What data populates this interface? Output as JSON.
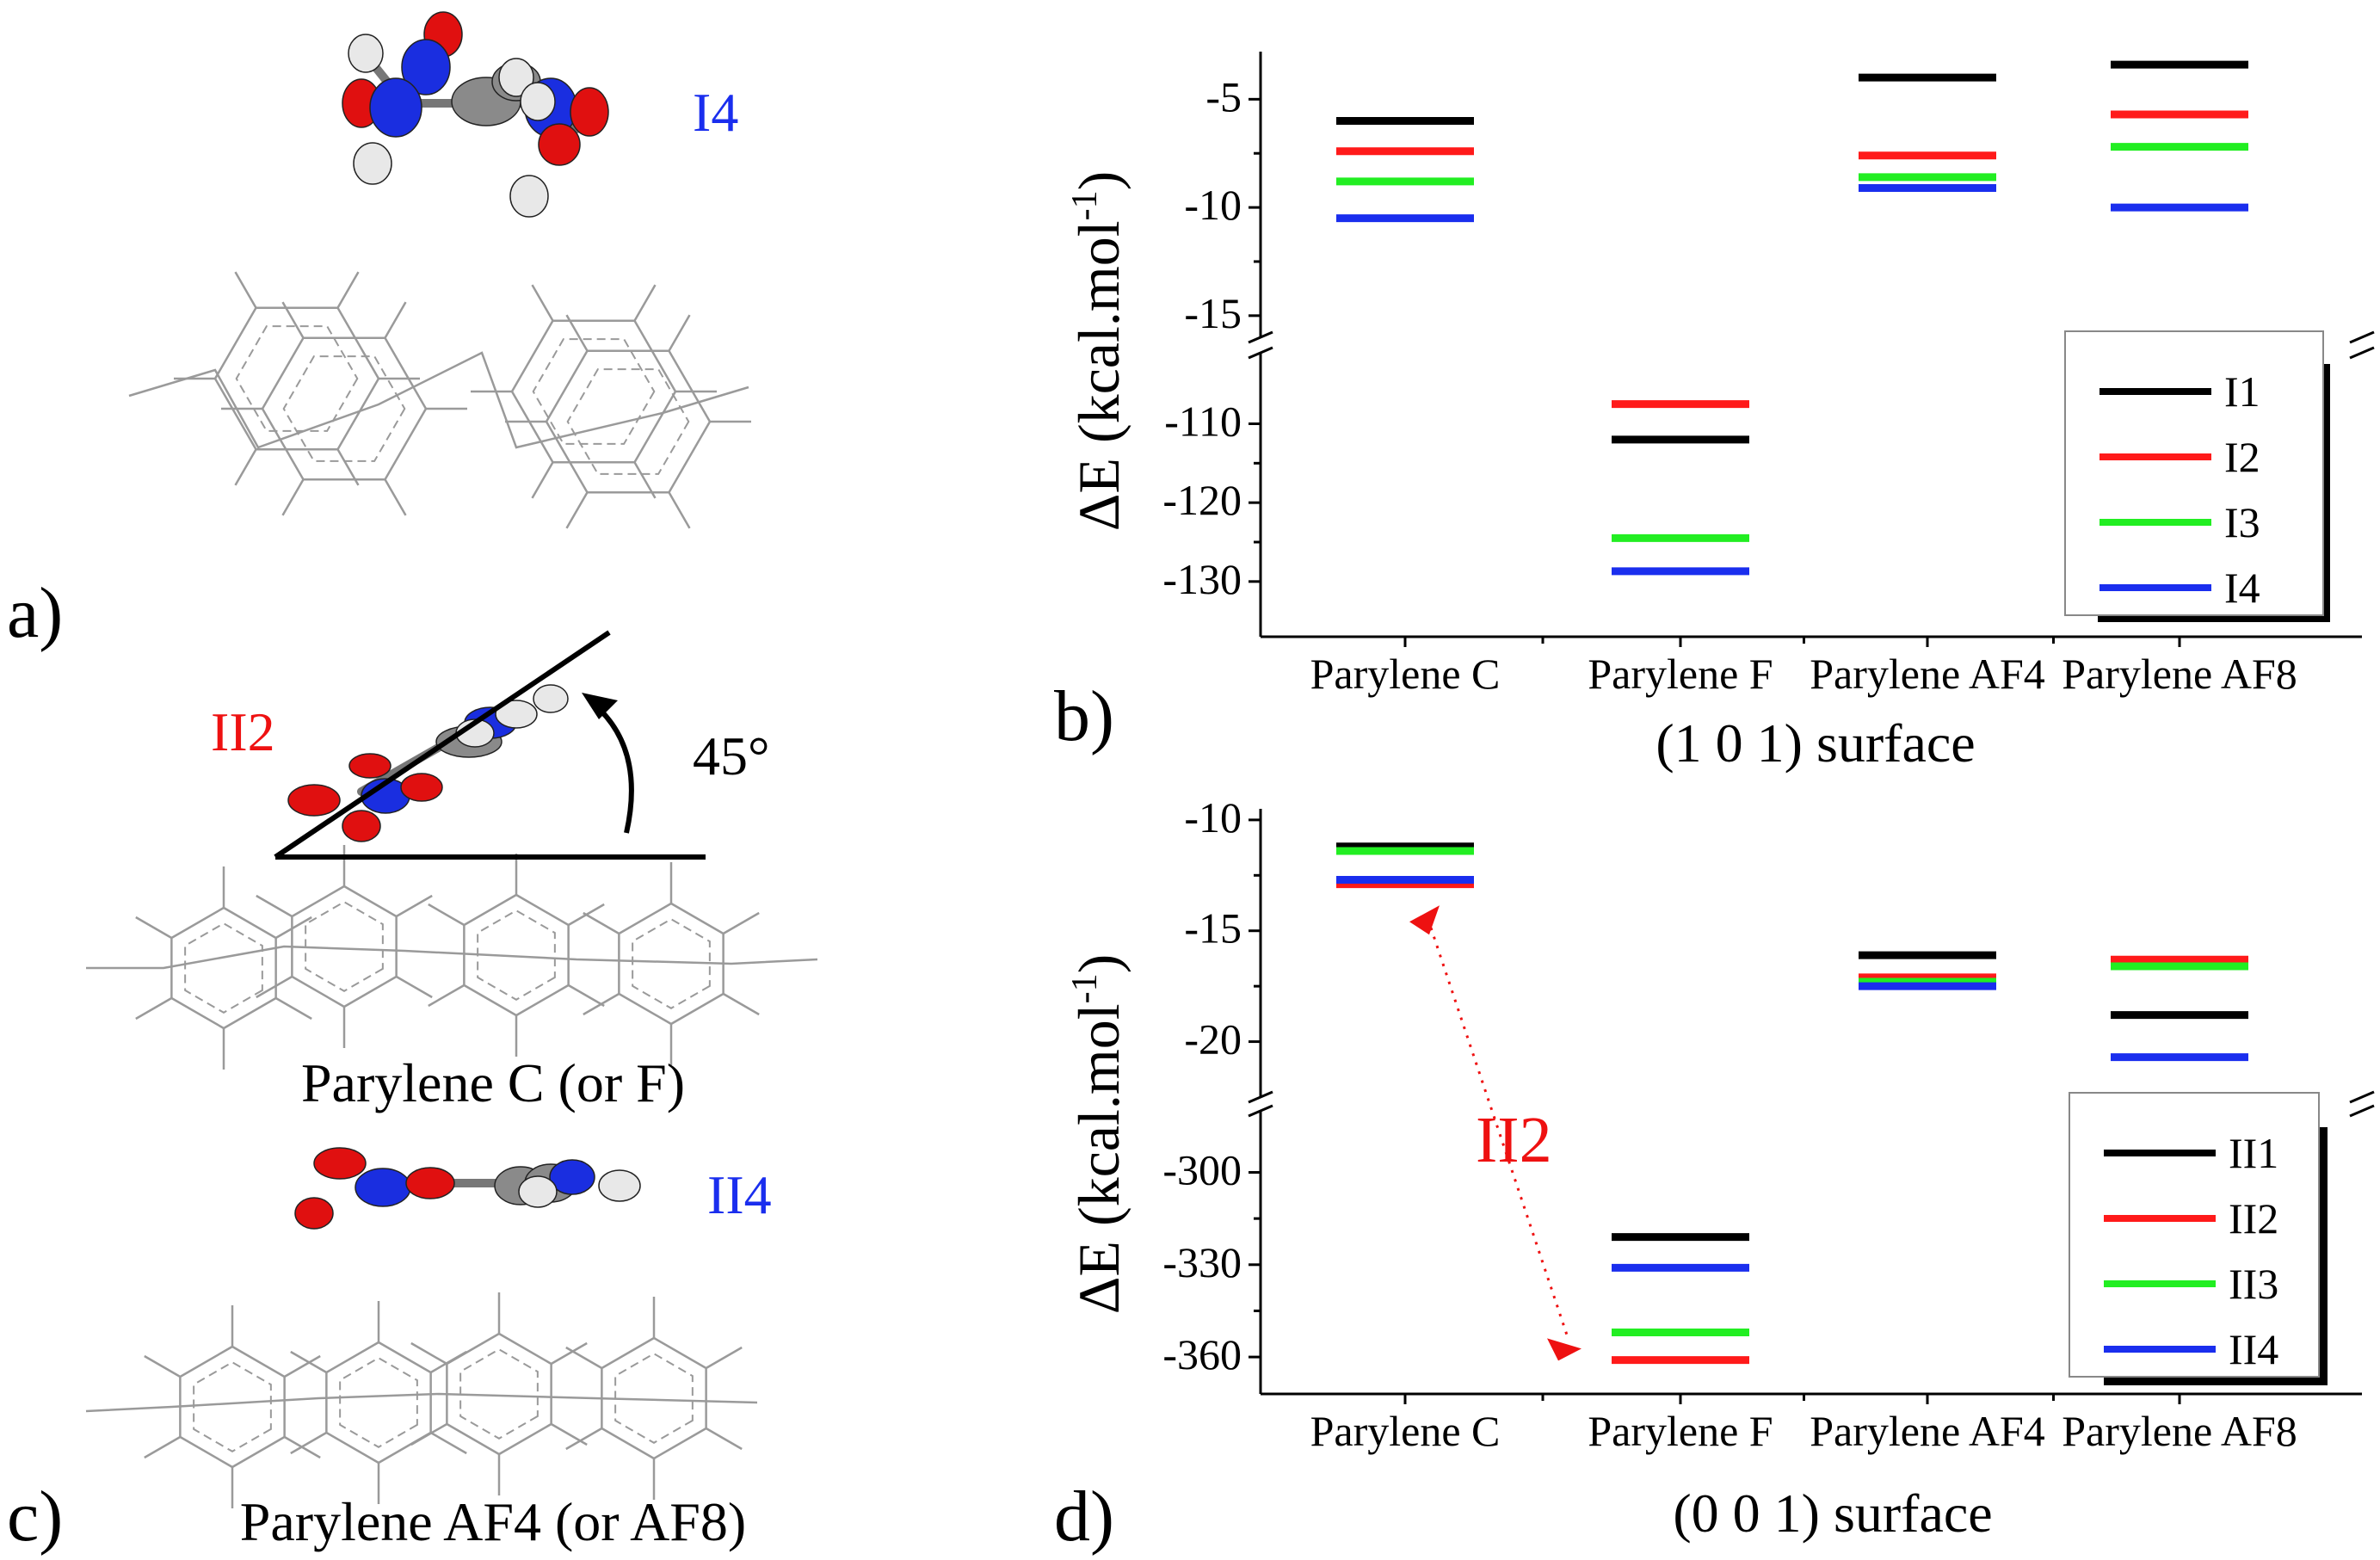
{
  "colors": {
    "I1": "#000000",
    "I2": "#ff1a1a",
    "I3": "#22ee22",
    "I4": "#1a2eee",
    "ring": "#9a9a9a",
    "atom_red": "#e01010",
    "atom_blue": "#1a2ee0",
    "atom_gray": "#8a8a8a",
    "atom_white": "#e8e8e8",
    "annotation": "#ee1111"
  },
  "panels": {
    "a": {
      "label": "a)",
      "molecule_label": "I4"
    },
    "c": {
      "label": "c)",
      "molecule_top": "II2",
      "angle": "45°",
      "caption_top": "Parylene C (or F)",
      "molecule_bottom": "II4",
      "caption_bottom": "Parylene AF4 (or AF8)"
    }
  },
  "chart_data": [
    {
      "id": "b",
      "type": "broken-axis level plot",
      "panel_label": "b)",
      "title": "(1 0 1) surface",
      "ylabel": "ΔE (kcal.mol",
      "ylabel_sup": "-1",
      "ylabel_close": ")",
      "categories": [
        "Parylene C",
        "Parylene F",
        "Parylene AF4",
        "Parylene AF8"
      ],
      "upper_range": [
        -16,
        -2.8
      ],
      "upper_ticks": [
        {
          "v": -5,
          "t": "-5"
        },
        {
          "v": -10,
          "t": "-10"
        },
        {
          "v": -15,
          "t": "-15"
        }
      ],
      "lower_range": [
        -137,
        -101
      ],
      "lower_ticks": [
        {
          "v": -110,
          "t": "-110"
        },
        {
          "v": -120,
          "t": "-120"
        },
        {
          "v": -130,
          "t": "-130"
        }
      ],
      "legend": [
        "I1",
        "I2",
        "I3",
        "I4"
      ],
      "series": [
        {
          "name": "I1",
          "values": [
            -6.0,
            -112.0,
            -4.0,
            -3.4
          ]
        },
        {
          "name": "I2",
          "values": [
            -7.4,
            -107.5,
            -7.6,
            -5.7
          ]
        },
        {
          "name": "I3",
          "values": [
            -8.8,
            -124.5,
            -8.6,
            -7.2
          ]
        },
        {
          "name": "I4",
          "values": [
            -10.5,
            -128.7,
            -9.1,
            -10.0
          ]
        }
      ]
    },
    {
      "id": "d",
      "type": "broken-axis level plot",
      "panel_label": "d)",
      "title": "(0 0 1) surface",
      "ylabel": "ΔE (kcal.mol",
      "ylabel_sup": "-1",
      "ylabel_close": ")",
      "categories": [
        "Parylene C",
        "Parylene F",
        "Parylene AF4",
        "Parylene AF8"
      ],
      "upper_range": [
        -22.5,
        -9.5
      ],
      "upper_ticks": [
        {
          "v": -10,
          "t": "-10"
        },
        {
          "v": -15,
          "t": "-15"
        },
        {
          "v": -20,
          "t": "-20"
        }
      ],
      "lower_range": [
        -372,
        -280
      ],
      "lower_ticks": [
        {
          "v": -300,
          "t": "-300"
        },
        {
          "v": -330,
          "t": "-330"
        },
        {
          "v": -360,
          "t": "-360"
        }
      ],
      "legend": [
        "II1",
        "II2",
        "II3",
        "II4"
      ],
      "series": [
        {
          "name": "II1",
          "values": [
            -11.2,
            -321.0,
            -16.1,
            -18.8
          ]
        },
        {
          "name": "II2",
          "values": [
            -12.9,
            -361.0,
            -17.1,
            -16.3
          ]
        },
        {
          "name": "II3",
          "values": [
            -11.4,
            -352.0,
            -17.3,
            -16.6
          ]
        },
        {
          "name": "II4",
          "values": [
            -12.7,
            -331.0,
            -17.5,
            -20.7
          ]
        }
      ],
      "annotation": {
        "text": "II2",
        "from_category": 0,
        "from_value": -14.4,
        "to_category": 1,
        "to_value": -354.5
      }
    }
  ]
}
